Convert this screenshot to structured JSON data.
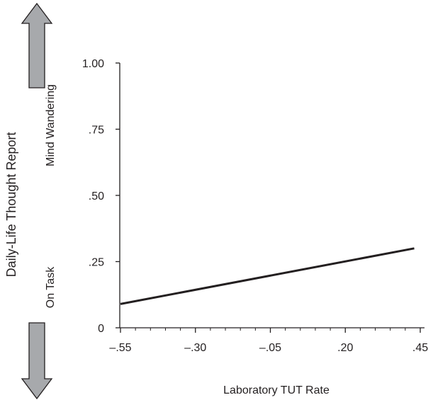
{
  "chart_data": {
    "type": "line",
    "title": "",
    "xlabel": "Laboratory TUT Rate",
    "ylabel": "Daily-Life Thought Report",
    "xlim": [
      -0.55,
      0.45
    ],
    "ylim": [
      0,
      1.0
    ],
    "x_ticks": [
      {
        "value": -0.55,
        "label": "–.55"
      },
      {
        "value": -0.3,
        "label": "–.30"
      },
      {
        "value": -0.05,
        "label": "–.05"
      },
      {
        "value": 0.2,
        "label": ".20"
      },
      {
        "value": 0.45,
        "label": ".45"
      }
    ],
    "y_ticks": [
      {
        "value": 0,
        "label": "0"
      },
      {
        "value": 0.25,
        "label": ".25"
      },
      {
        "value": 0.5,
        "label": ".50"
      },
      {
        "value": 0.75,
        "label": ".75"
      },
      {
        "value": 1.0,
        "label": "1.00"
      }
    ],
    "y_direction_labels": {
      "high": "Mind Wandering",
      "low": "On Task"
    },
    "series": [
      {
        "x": [
          -0.55,
          0.43
        ],
        "y": [
          0.09,
          0.3
        ]
      }
    ],
    "grid": false,
    "legend": "none"
  },
  "colors": {
    "ink": "#231f20",
    "arrow_fill": "#a7a9ac",
    "arrow_stroke": "#231f20"
  }
}
